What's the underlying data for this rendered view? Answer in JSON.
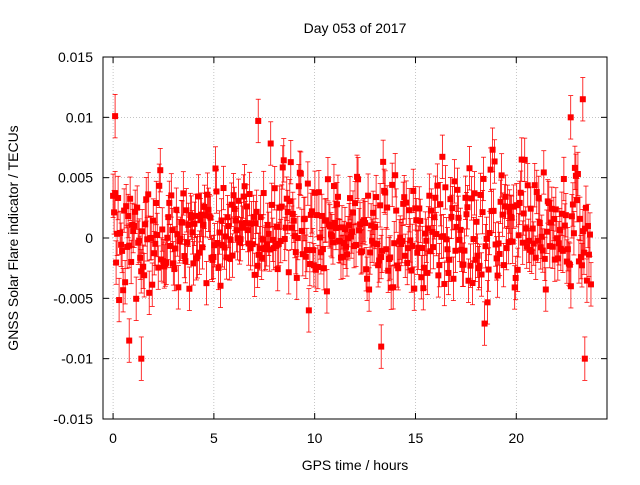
{
  "chart_data": {
    "type": "scatter",
    "title": "Day 053 of 2017",
    "xlabel": "GPS time / hours",
    "ylabel": "GNSS Solar Flare indicator / TECUs",
    "xlim": [
      -0.5,
      24.5
    ],
    "ylim": [
      -0.015,
      0.015
    ],
    "x_ticks": [
      0,
      5,
      10,
      15,
      20
    ],
    "y_ticks": [
      -0.015,
      -0.01,
      -0.005,
      0,
      0.005,
      0.01,
      0.015
    ],
    "x_tick_labels": [
      "0",
      "5",
      "10",
      "15",
      "20"
    ],
    "y_tick_labels": [
      "-0.015",
      "-0.01",
      "-0.005",
      "0",
      "0.005",
      "0.01",
      "0.015"
    ],
    "grid": true,
    "legend": "none",
    "series_color": "#ff0000",
    "error_bar_halfwidth": 0.0018,
    "series": [
      {
        "x_range": [
          0,
          23.75
        ],
        "x_step": 0.0083,
        "y_band_typical": [
          -0.006,
          0.007
        ],
        "y_extremes": [
          {
            "x": 0.1,
            "y": 0.0101
          },
          {
            "x": 0.8,
            "y": -0.0085
          },
          {
            "x": 1.4,
            "y": -0.01
          },
          {
            "x": 7.2,
            "y": 0.0097
          },
          {
            "x": 13.3,
            "y": -0.009
          },
          {
            "x": 22.7,
            "y": 0.01
          },
          {
            "x": 23.3,
            "y": 0.0115
          },
          {
            "x": 23.4,
            "y": -0.01
          }
        ]
      }
    ]
  }
}
